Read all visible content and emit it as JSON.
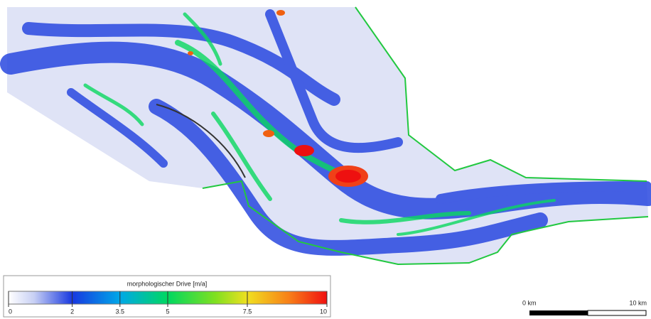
{
  "legend": {
    "title": "morphologischer Drive [m/a]",
    "ticks": [
      0,
      2,
      3.5,
      5,
      7.5,
      10
    ]
  },
  "scale_bar": {
    "start_label": "0 km",
    "end_label": "10 km"
  }
}
